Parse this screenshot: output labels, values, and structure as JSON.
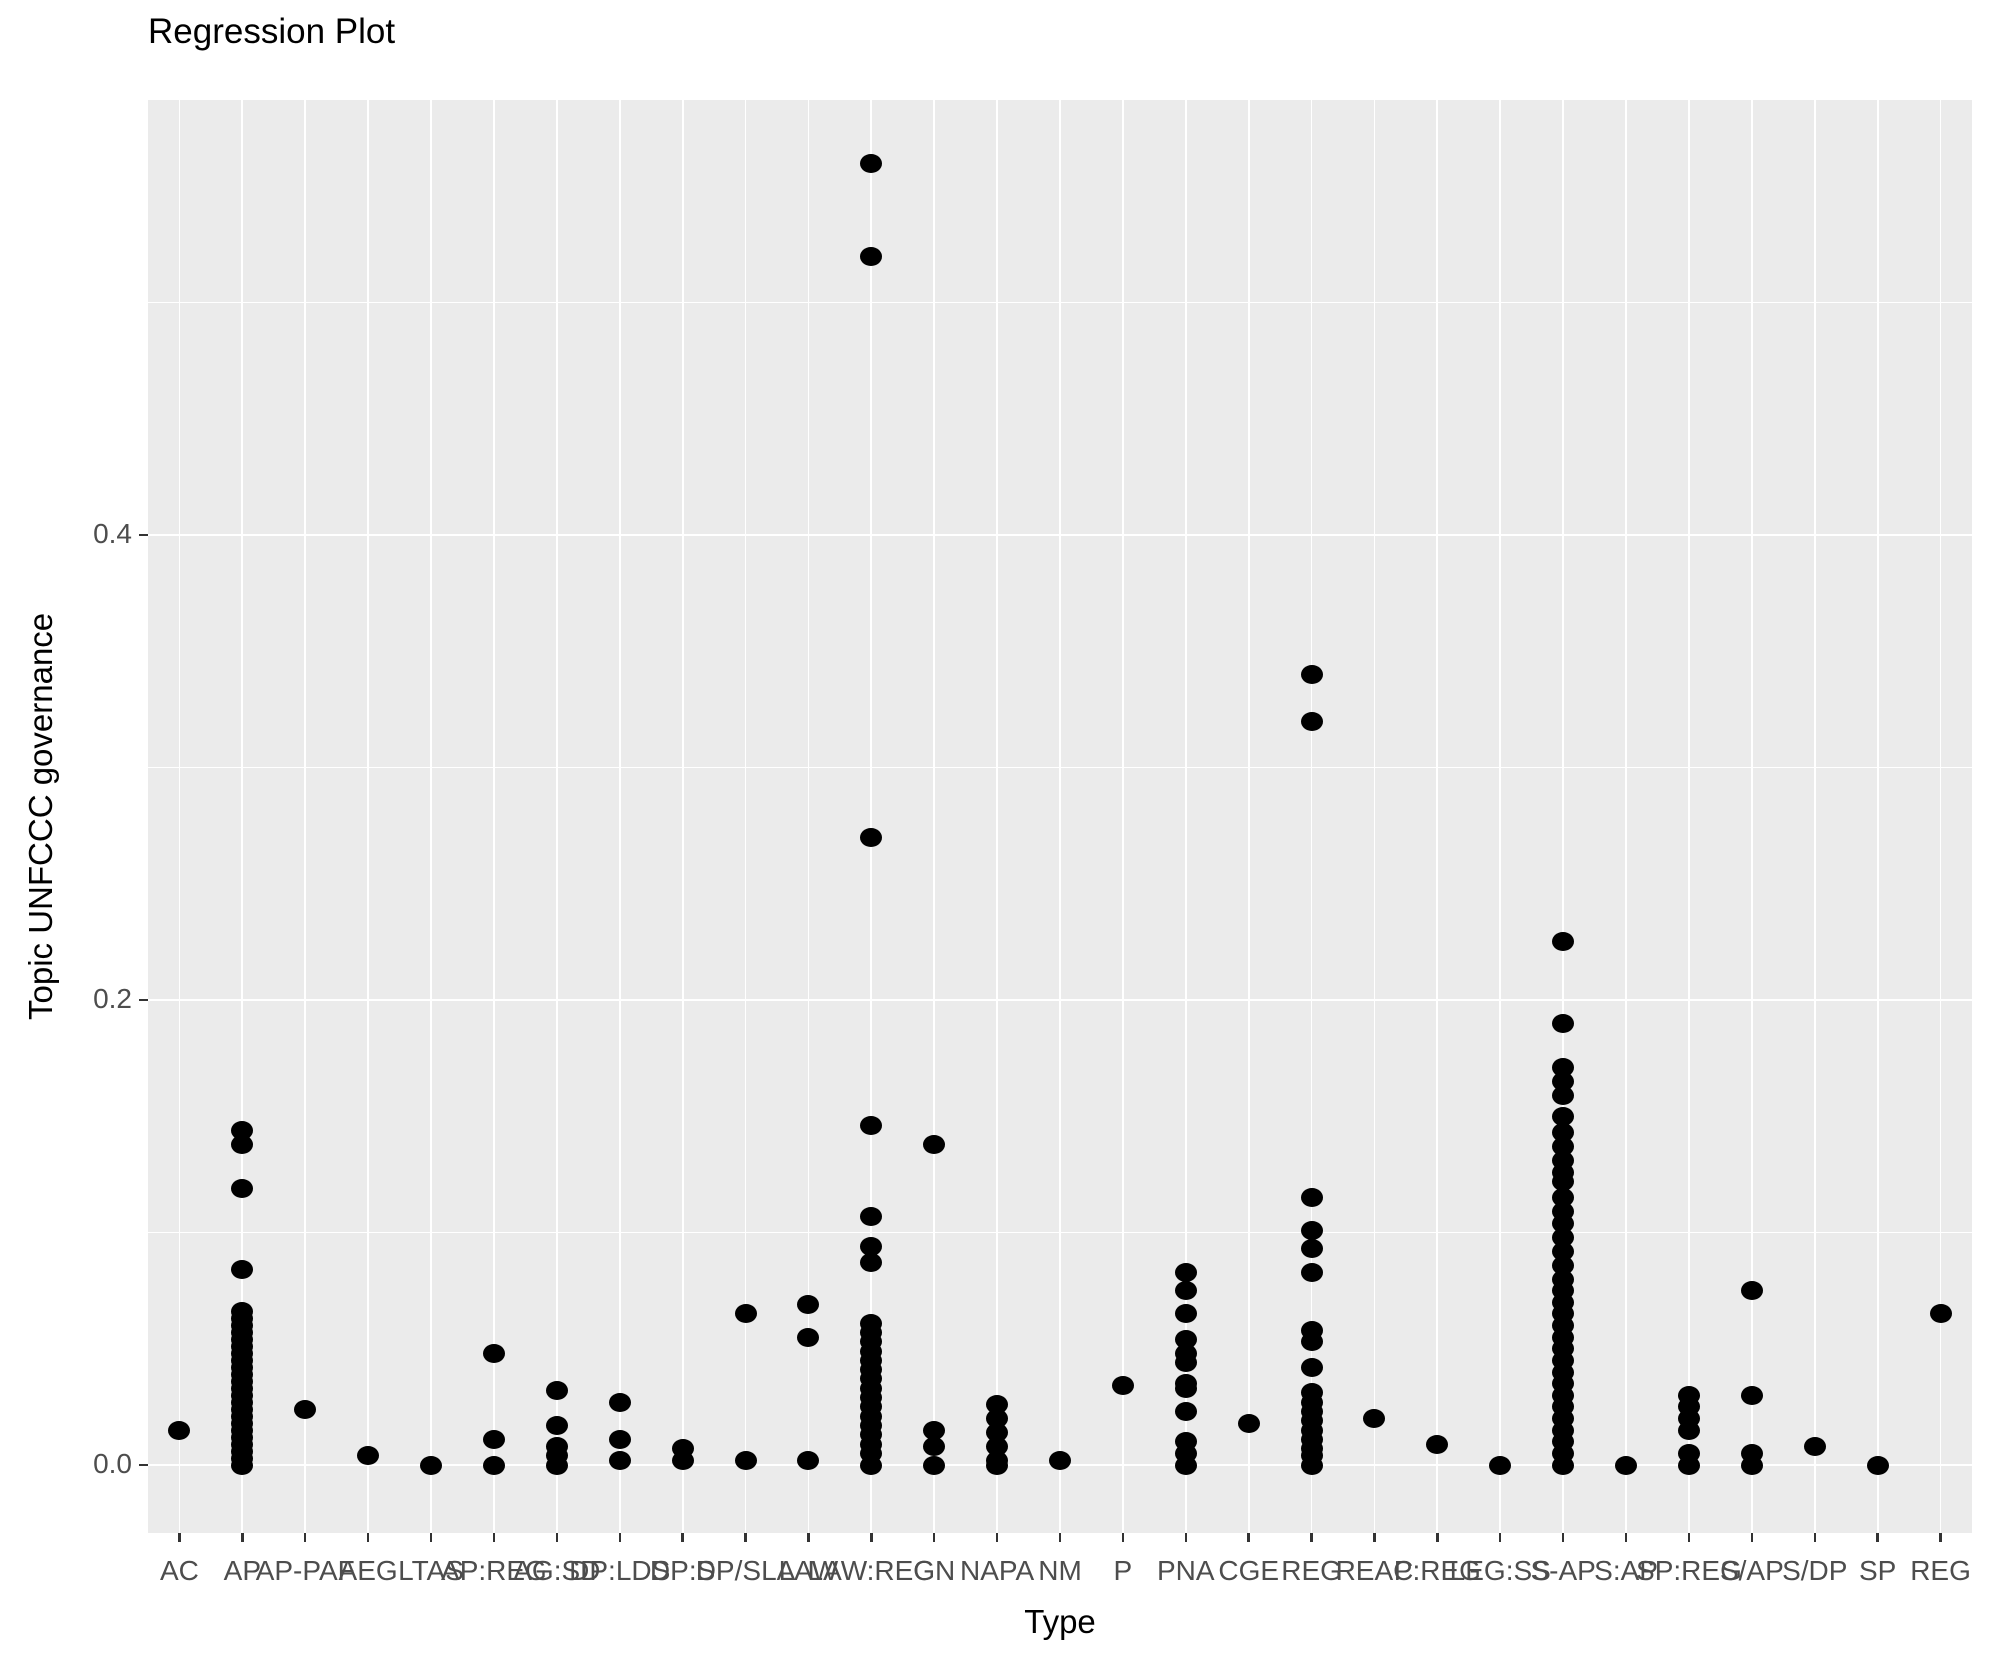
{
  "title": "Regression Plot",
  "chart_data": {
    "type": "scatter",
    "title": "Regression Plot",
    "xlabel": "Type",
    "ylabel": "Topic UNFCCC governance",
    "ylim": [
      -0.029,
      0.587
    ],
    "yticks": [
      0.0,
      0.2,
      0.4
    ],
    "ytick_labels": [
      "0.0",
      "0.2",
      "0.4"
    ],
    "minor_gridlines": [
      0.1,
      0.3,
      0.5
    ],
    "grid": "on",
    "legend_position": "none",
    "panel_background": "#EBEBEB",
    "grid_color": "#FFFFFF",
    "point_color": "#000000",
    "axis_text_color": "#4D4D4D",
    "categories": [
      "AC",
      "AP",
      "AP-PAF",
      "AEG",
      "LTAS",
      "AP:REG",
      "AG:SD",
      "DP:LDS",
      "DP:S",
      "DP/SLA",
      "LAW",
      "LAW:REG",
      "GN",
      "NAPA",
      "NM",
      "P",
      "PNA",
      "CGE",
      "REG",
      "REAC",
      "P:REG",
      "LEG:SS",
      "S-AP",
      "S:AP",
      "SP:REG",
      "S/AP",
      "S/DP",
      "SP",
      "REG"
    ],
    "series": [
      {
        "name": "Topic UNFCCC governance by Type",
        "values_by_category": [
          [
            0.015
          ],
          [
            0.144,
            0.138,
            0.119,
            0.084,
            0.066,
            0.063,
            0.06,
            0.057,
            0.054,
            0.051,
            0.048,
            0.045,
            0.042,
            0.039,
            0.036,
            0.033,
            0.03,
            0.027,
            0.024,
            0.021,
            0.018,
            0.015,
            0.012,
            0.009,
            0.006,
            0.003,
            0.0
          ],
          [
            0.024
          ],
          [
            0.004
          ],
          [
            0.0
          ],
          [
            0.048,
            0.011,
            0.0
          ],
          [
            0.032,
            0.017,
            0.008,
            0.004,
            0.0
          ],
          [
            0.027,
            0.011,
            0.002
          ],
          [
            0.007,
            0.002
          ],
          [
            0.065,
            0.002
          ],
          [
            0.069,
            0.055,
            0.002
          ],
          [
            0.56,
            0.52,
            0.27,
            0.146,
            0.107,
            0.094,
            0.087,
            0.061,
            0.057,
            0.053,
            0.049,
            0.045,
            0.041,
            0.037,
            0.033,
            0.029,
            0.025,
            0.021,
            0.017,
            0.013,
            0.009,
            0.005,
            0.0
          ],
          [
            0.138,
            0.015,
            0.008,
            0.0
          ],
          [
            0.026,
            0.02,
            0.014,
            0.008,
            0.002,
            0.0
          ],
          [
            0.002
          ],
          [
            0.034
          ],
          [
            0.083,
            0.075,
            0.065,
            0.054,
            0.048,
            0.044,
            0.035,
            0.033,
            0.023,
            0.01,
            0.005,
            0.0
          ],
          [
            0.018
          ],
          [
            0.34,
            0.32,
            0.115,
            0.101,
            0.093,
            0.083,
            0.058,
            0.053,
            0.042,
            0.031,
            0.027,
            0.023,
            0.019,
            0.015,
            0.011,
            0.007,
            0.004,
            0.0
          ],
          [
            0.02
          ],
          [
            0.009
          ],
          [
            0.0
          ],
          [
            0.225,
            0.19,
            0.171,
            0.165,
            0.159,
            0.15,
            0.143,
            0.137,
            0.131,
            0.126,
            0.122,
            0.115,
            0.109,
            0.104,
            0.098,
            0.092,
            0.086,
            0.08,
            0.075,
            0.07,
            0.065,
            0.06,
            0.055,
            0.05,
            0.045,
            0.04,
            0.035,
            0.03,
            0.025,
            0.02,
            0.015,
            0.01,
            0.005,
            0.0
          ],
          [
            0.0
          ],
          [
            0.03,
            0.025,
            0.02,
            0.015,
            0.005,
            0.0
          ],
          [
            0.075,
            0.03,
            0.005,
            0.0
          ],
          [
            0.008
          ],
          [
            0.0
          ],
          [
            0.065
          ]
        ]
      }
    ]
  }
}
